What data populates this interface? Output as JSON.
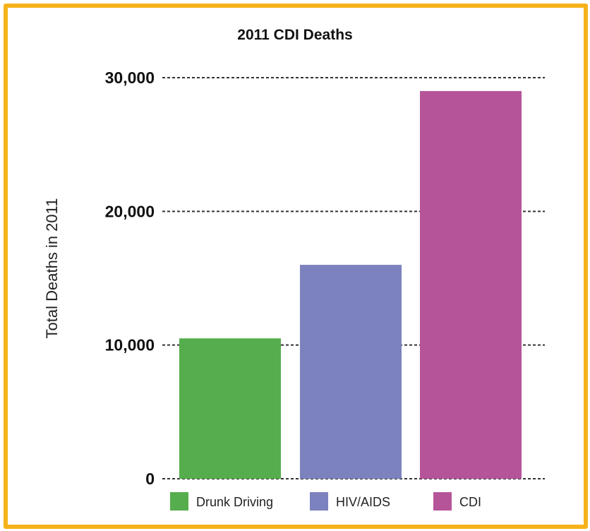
{
  "colors": {
    "frame": "#f5b219",
    "grid": "#333333"
  },
  "chart_data": {
    "type": "bar",
    "title": "2011 CDI Deaths",
    "xlabel": "",
    "ylabel": "Total Deaths in 2011",
    "ylim": [
      0,
      30000
    ],
    "yticks": [
      0,
      10000,
      20000,
      30000
    ],
    "ytick_labels": [
      "0",
      "10,000",
      "20,000",
      "30,000"
    ],
    "grid": "horizontal dashed",
    "legend_position": "bottom",
    "categories": [
      "Drunk Driving",
      "HIV/AIDS",
      "CDI"
    ],
    "values": [
      10500,
      16000,
      29000
    ],
    "colors": [
      "#56ad4d",
      "#7b82be",
      "#b65499"
    ]
  }
}
